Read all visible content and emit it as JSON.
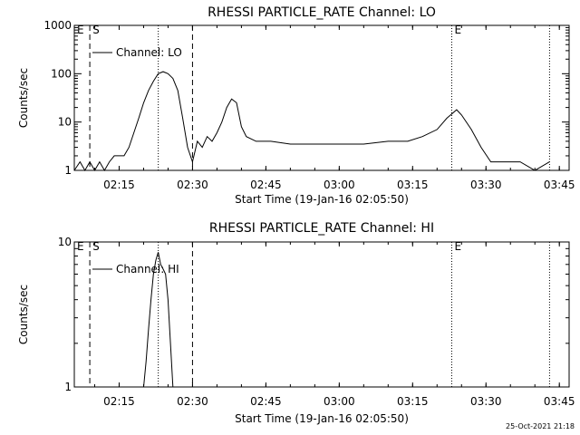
{
  "chart_data": [
    {
      "type": "line",
      "title": "RHESSI PARTICLE_RATE Channel: LO",
      "xlabel": "Start Time (19-Jan-16 02:05:50)",
      "ylabel": "Counts/sec",
      "y_scale": "log",
      "ylim": [
        1,
        1000
      ],
      "y_ticks": [
        "1",
        "10",
        "100",
        "1000"
      ],
      "x_ticks": [
        "02:15",
        "02:30",
        "02:45",
        "03:00",
        "03:15",
        "03:30",
        "03:45"
      ],
      "legend": "Channel: LO",
      "legend_position": "top-left",
      "markers": [
        {
          "label": "E",
          "style": "dotted",
          "time": "02:05:50"
        },
        {
          "label": "S",
          "style": "dashed",
          "time": "02:09:00"
        },
        {
          "label": "",
          "style": "dotted",
          "time": "02:23:00"
        },
        {
          "label": "",
          "style": "dashed",
          "time": "02:30:00"
        },
        {
          "label": "E",
          "style": "dotted",
          "time": "03:23:00"
        },
        {
          "label": "",
          "style": "dotted",
          "time": "03:43:00"
        }
      ],
      "series": [
        {
          "name": "Channel: LO",
          "x": [
            "02:05:50",
            "02:07:00",
            "02:08:00",
            "02:09:00",
            "02:10:00",
            "02:11:00",
            "02:12:00",
            "02:13:00",
            "02:14:00",
            "02:15:00",
            "02:16:00",
            "02:17:00",
            "02:18:00",
            "02:19:00",
            "02:20:00",
            "02:21:00",
            "02:22:00",
            "02:23:00",
            "02:24:00",
            "02:25:00",
            "02:26:00",
            "02:27:00",
            "02:28:00",
            "02:29:00",
            "02:30:00",
            "02:31:00",
            "02:32:00",
            "02:33:00",
            "02:34:00",
            "02:35:00",
            "02:36:00",
            "02:37:00",
            "02:38:00",
            "02:39:00",
            "02:40:00",
            "02:41:00",
            "02:43:00",
            "02:46:00",
            "02:50:00",
            "02:55:00",
            "03:00:00",
            "03:05:00",
            "03:10:00",
            "03:14:00",
            "03:17:00",
            "03:20:00",
            "03:22:00",
            "03:24:00",
            "03:25:00",
            "03:27:00",
            "03:29:00",
            "03:31:00",
            "03:34:00",
            "03:37:00",
            "03:40:00",
            "03:43:00"
          ],
          "y": [
            1,
            1.5,
            1,
            1.5,
            1,
            1.5,
            1,
            1.5,
            2,
            2,
            2,
            3,
            6,
            12,
            25,
            45,
            70,
            100,
            110,
            100,
            80,
            45,
            12,
            3,
            1.5,
            4,
            3,
            5,
            4,
            6,
            10,
            20,
            30,
            25,
            8,
            5,
            4,
            4,
            3.5,
            3.5,
            3.5,
            3.5,
            4,
            4,
            5,
            7,
            12,
            18,
            14,
            7,
            3,
            1.5,
            1.5,
            1.5,
            1,
            1.5
          ]
        }
      ]
    },
    {
      "type": "line",
      "title": "RHESSI PARTICLE_RATE Channel: HI",
      "xlabel": "Start Time (19-Jan-16 02:05:50)",
      "ylabel": "Counts/sec",
      "y_scale": "log",
      "ylim": [
        1,
        10
      ],
      "y_ticks": [
        "1",
        "10"
      ],
      "x_ticks": [
        "02:15",
        "02:30",
        "02:45",
        "03:00",
        "03:15",
        "03:30",
        "03:45"
      ],
      "legend": "Channel: HI",
      "legend_position": "top-left",
      "markers": [
        {
          "label": "E",
          "style": "dotted",
          "time": "02:05:50"
        },
        {
          "label": "S",
          "style": "dashed",
          "time": "02:09:00"
        },
        {
          "label": "",
          "style": "dotted",
          "time": "02:23:00"
        },
        {
          "label": "",
          "style": "dashed",
          "time": "02:30:00"
        },
        {
          "label": "E",
          "style": "dotted",
          "time": "03:23:00"
        },
        {
          "label": "",
          "style": "dotted",
          "time": "03:43:00"
        }
      ],
      "series": [
        {
          "name": "Channel: HI",
          "x": [
            "02:20:00",
            "02:20:30",
            "02:21:00",
            "02:21:30",
            "02:22:00",
            "02:22:30",
            "02:23:00",
            "02:23:30",
            "02:24:00",
            "02:24:30",
            "02:25:00",
            "02:25:30",
            "02:26:00"
          ],
          "y": [
            1,
            1.5,
            2.5,
            4,
            6,
            7.5,
            8.5,
            7,
            6.5,
            6,
            4,
            2,
            1
          ]
        }
      ]
    }
  ],
  "footer": {
    "timestamp": "25-Oct-2021 21:18"
  }
}
